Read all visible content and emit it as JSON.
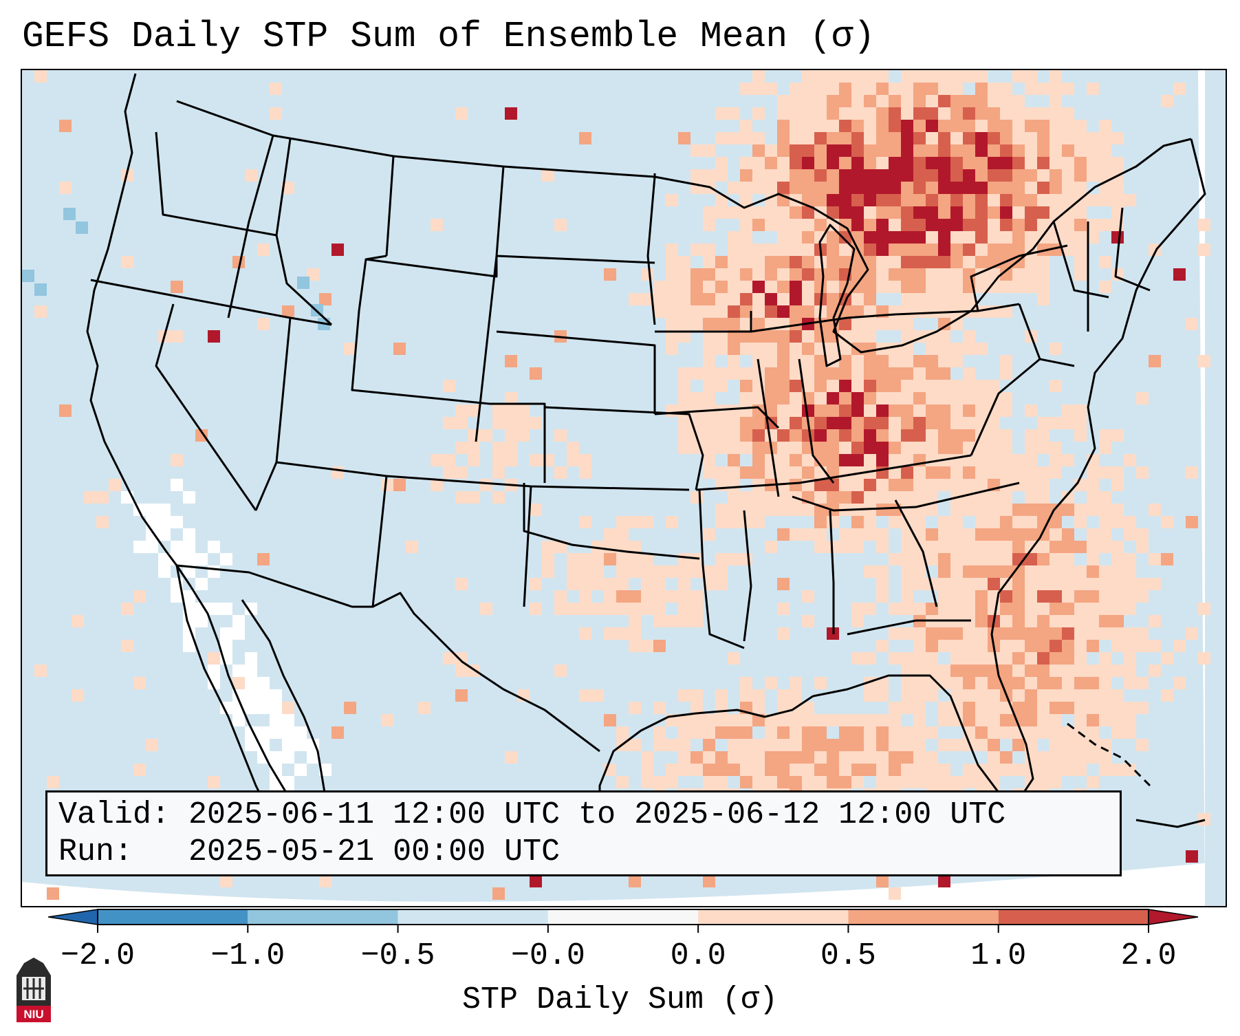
{
  "title": "GEFS Daily STP Sum of Ensemble Mean (σ)",
  "info": {
    "valid_text": "Valid: 2025-06-11 12:00 UTC to 2025-06-12 12:00 UTC",
    "run_text": "Run:   2025-05-21 00:00 UTC"
  },
  "colorbar": {
    "label": "STP Daily Sum (σ)",
    "ticks": [
      "−2.0",
      "−1.0",
      "−0.5",
      "−0.0",
      "0.0",
      "0.5",
      "1.0",
      "2.0"
    ],
    "colors": [
      "#4292c6",
      "#92c5de",
      "#d1e5f0",
      "#f7f7f7",
      "#fddbc7",
      "#f4a582",
      "#d6604d",
      "#b2182b"
    ]
  },
  "map": {
    "region": "Continental United States",
    "background_color": "#d1e5f0",
    "colors": {
      "slight_positive": "#fddbc7",
      "moderate_positive": "#f4a582",
      "high_positive": "#d6604d",
      "very_high_positive": "#b2182b",
      "near_zero": "#ffffff",
      "slight_negative": "#d1e5f0",
      "moderate_negative": "#92c5de"
    }
  },
  "logo": {
    "text": "NIU"
  }
}
